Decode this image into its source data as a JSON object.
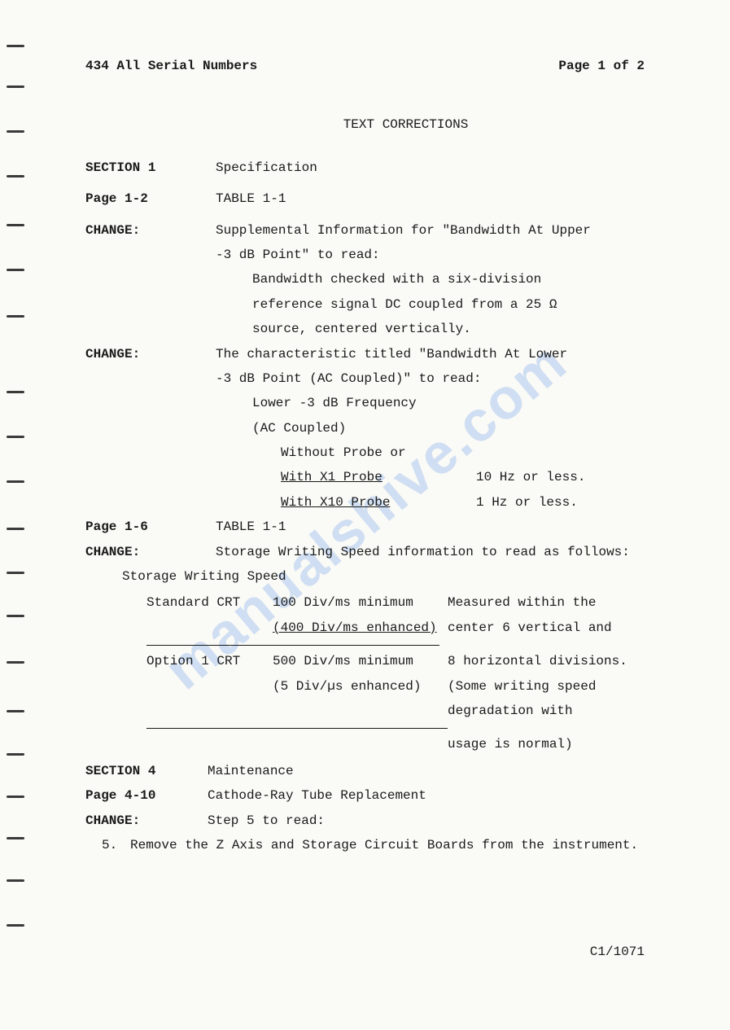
{
  "watermark": "manualshive.com",
  "header": {
    "left": "434  All Serial Numbers",
    "right": "Page 1 of 2"
  },
  "title": "TEXT CORRECTIONS",
  "section1": {
    "label": "SECTION 1",
    "value": "Specification"
  },
  "page12": {
    "label": "Page 1-2",
    "value": "TABLE 1-1"
  },
  "change1": {
    "label": "CHANGE:",
    "line1": "Supplemental Information for \"Bandwidth At Upper",
    "line2": "-3 dB Point\" to read:",
    "sub1": "Bandwidth checked with a six-division",
    "sub2": "reference signal DC coupled from a 25 Ω",
    "sub3": "source, centered vertically."
  },
  "change2": {
    "label": "CHANGE:",
    "line1": "The characteristic titled \"Bandwidth At Lower",
    "line2": "-3 dB Point (AC Coupled)\" to read:",
    "sub1": "Lower -3 dB Frequency",
    "sub2": "(AC Coupled)",
    "sub3": "Without Probe or",
    "probe1_label": "With X1 Probe",
    "probe1_value": "10 Hz or less.",
    "probe2_label": "With X10 Probe",
    "probe2_value": "1 Hz or less."
  },
  "page16": {
    "label": "Page 1-6",
    "value": "TABLE 1-1"
  },
  "change3": {
    "label": "CHANGE:",
    "line1": "Storage Writing Speed information to read as follows:",
    "heading": "Storage Writing Speed",
    "rows": [
      {
        "c1": "Standard CRT",
        "c2": "100 Div/ms minimum",
        "c3": "Measured within the"
      },
      {
        "c1": "",
        "c2": "(400 Div/ms enhanced)",
        "c2u": true,
        "c3": "center 6 vertical and"
      },
      {
        "c1": "Option 1 CRT",
        "c2": "500 Div/ms minimum",
        "c3": "8 horizontal divisions."
      },
      {
        "c1": "",
        "c2": " (5 Div/µs enhanced)",
        "c3": "(Some writing speed"
      },
      {
        "c1": "",
        "c2": "",
        "c3": "degradation with"
      },
      {
        "c1": "",
        "c2": "",
        "c3": "usage is normal)"
      }
    ]
  },
  "section4": {
    "label": "SECTION 4",
    "value": "Maintenance"
  },
  "page410": {
    "label": "Page 4-10",
    "value": "Cathode-Ray Tube Replacement"
  },
  "change4": {
    "label": "CHANGE:",
    "value": "Step 5 to read:"
  },
  "step5": {
    "num": "5.",
    "text": "Remove the Z Axis and Storage Circuit Boards from the instrument."
  },
  "footer": "C1/1071",
  "dash_positions": [
    55,
    105,
    160,
    215,
    275,
    330,
    387,
    480,
    535,
    590,
    648,
    702,
    755,
    812,
    872,
    925,
    977,
    1028,
    1080,
    1135
  ]
}
